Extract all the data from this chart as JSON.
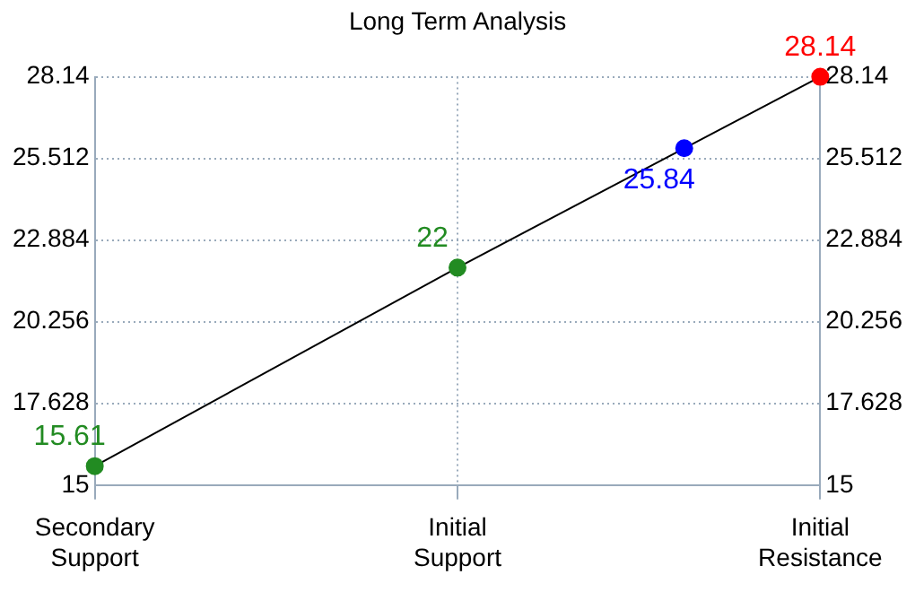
{
  "chart_data": {
    "type": "line",
    "title": "Long Term Analysis",
    "categories": [
      "Secondary Support",
      null,
      null,
      null,
      null,
      null,
      null,
      null,
      "Initial Support",
      null,
      null,
      null,
      null,
      null,
      null,
      null,
      "Initial Resistance"
    ],
    "series": [
      {
        "color": "#000000",
        "colors": [
          "#228b22",
          null,
          null,
          null,
          null,
          null,
          null,
          null,
          "#228b22",
          null,
          null,
          null,
          null,
          "#0000ff",
          null,
          null,
          "#ff0000"
        ],
        "values": [
          15.61,
          null,
          null,
          null,
          null,
          null,
          null,
          null,
          22,
          null,
          null,
          null,
          null,
          25.84,
          null,
          null,
          28.14
        ]
      }
    ],
    "ylim": [
      15,
      28.14
    ],
    "yticks": [
      15,
      17.628,
      20.256,
      22.884,
      25.512,
      28.14
    ],
    "y2lim": [
      15,
      28.14
    ],
    "y2ticks": [
      15,
      17.628,
      20.256,
      22.884,
      25.512,
      28.14
    ],
    "grid": true,
    "marker": "circle",
    "line_style": "solid",
    "data_labels": true
  }
}
